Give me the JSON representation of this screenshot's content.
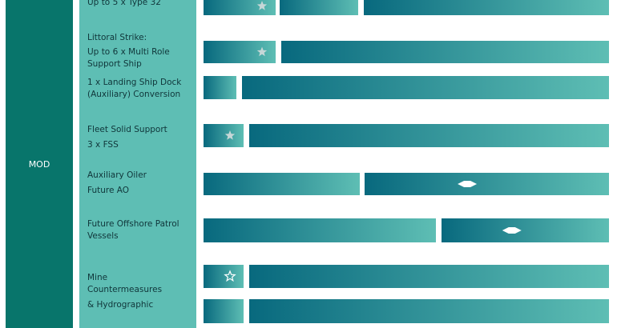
{
  "group_label": "MOD",
  "colors": {
    "group_bg": "#08756b",
    "label_bg": "#5ebeb4",
    "bar_start": "#08697e",
    "bar_end": "#5ebeb4",
    "marker": "#ffffff",
    "label_text": "#10363a"
  },
  "programmes": [
    {
      "lines": [
        "Up to 5 x Type 32"
      ]
    },
    {
      "lines": [
        "Littoral Strike:",
        "Up to 6 x Multi Role",
        "Support Ship"
      ]
    },
    {
      "lines": [
        "1 x Landing Ship Dock",
        "(Auxiliary) Conversion"
      ]
    },
    {
      "lines": [
        "Fleet Solid Support",
        "3 x FSS"
      ]
    },
    {
      "lines": [
        "Auxiliary Oiler",
        "Future AO"
      ]
    },
    {
      "lines": [
        "Future Offshore Patrol",
        "Vessels"
      ]
    },
    {
      "lines": [
        "Mine",
        "Countermeasures",
        "& Hydrographic"
      ]
    }
  ],
  "chart_data": {
    "type": "gantt",
    "rows": [
      {
        "programme": "Up to 5 x Type 32",
        "phases": [
          {
            "marker": "star"
          },
          {
            "marker": null
          },
          {
            "marker": null
          }
        ]
      },
      {
        "programme": "Littoral Strike: Up to 6 x Multi Role Support Ship",
        "phases": [
          {
            "marker": "star"
          },
          {
            "marker": null
          }
        ]
      },
      {
        "programme": "1 x Landing Ship Dock (Auxiliary) Conversion",
        "phases": [
          {
            "marker": null
          },
          {
            "marker": null
          }
        ]
      },
      {
        "programme": "Fleet Solid Support 3 x FSS",
        "phases": [
          {
            "marker": "star"
          },
          {
            "marker": null
          }
        ]
      },
      {
        "programme": "Auxiliary Oiler Future AO",
        "phases": [
          {
            "marker": null
          },
          {
            "marker": "diamond"
          }
        ]
      },
      {
        "programme": "Future Offshore Patrol Vessels",
        "phases": [
          {
            "marker": null
          },
          {
            "marker": "diamond"
          }
        ]
      },
      {
        "programme": "Mine Countermeasures & Hydrographic",
        "phases": [
          {
            "marker": "star-outline"
          },
          {
            "marker": null
          }
        ]
      },
      {
        "programme": "Mine Countermeasures & Hydrographic",
        "phases": [
          {
            "marker": null
          },
          {
            "marker": null
          }
        ]
      }
    ]
  }
}
